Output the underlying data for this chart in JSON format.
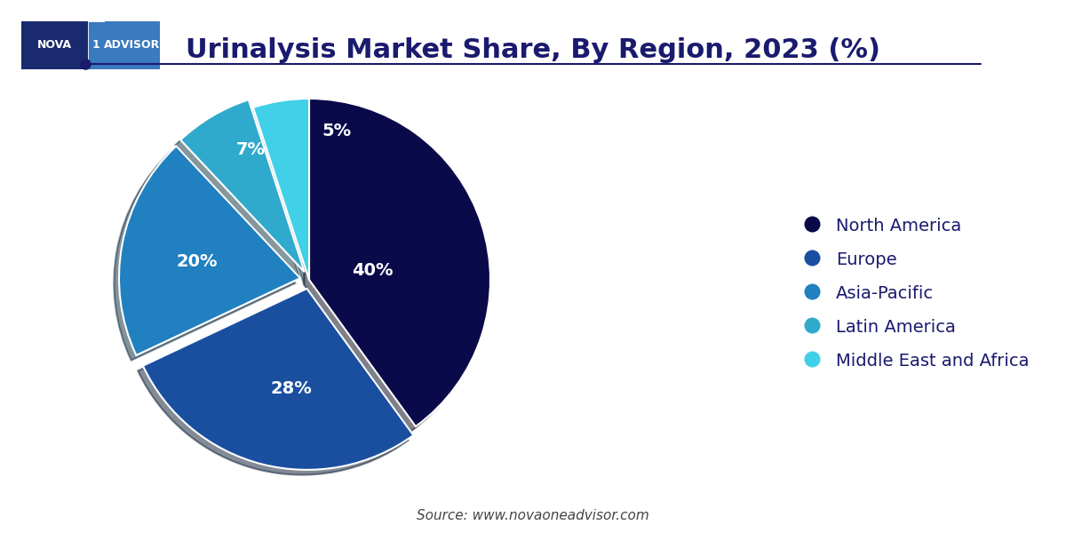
{
  "title": "Urinalysis Market Share, By Region, 2023 (%)",
  "title_color": "#1a1a6e",
  "title_fontsize": 22,
  "labels": [
    "North America",
    "Europe",
    "Asia-Pacific",
    "Latin America",
    "Middle East and Africa"
  ],
  "values": [
    40,
    28,
    20,
    7,
    5
  ],
  "colors": [
    "#0a0a4a",
    "#1a4fa0",
    "#2080c0",
    "#30aacc",
    "#40d0e8"
  ],
  "explode": [
    0,
    0.05,
    0.05,
    0.05,
    0
  ],
  "pct_labels": [
    "40%",
    "28%",
    "20%",
    "7%",
    "5%"
  ],
  "legend_text_color": "#1a1a6e",
  "legend_fontsize": 14,
  "source_text": "Source: www.novaoneadvisor.com",
  "source_fontsize": 11,
  "source_color": "#444444",
  "background_color": "#ffffff",
  "shadow": true
}
